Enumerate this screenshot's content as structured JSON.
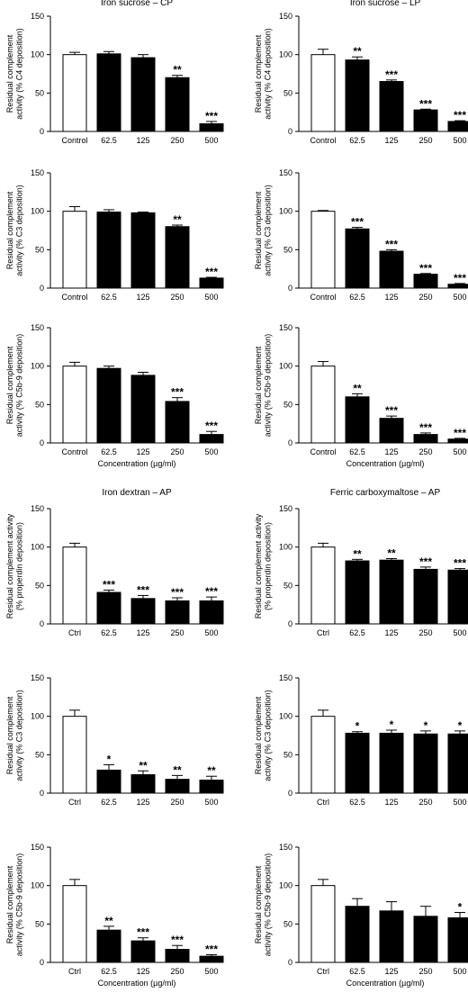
{
  "figure": {
    "section_titles": [
      "Iron sucrose – CP",
      "Iron sucrose – LP",
      "Iron dextran – AP",
      "Ferric carboxymaltose – AP"
    ]
  },
  "chart_data": [
    {
      "type": "bar",
      "title": "Iron sucrose – CP",
      "ylabel": [
        "Residual complement",
        "activity (% C4 deposition)"
      ],
      "xlabel": "",
      "categories": [
        "Control",
        "62.5",
        "125",
        "250",
        "500"
      ],
      "values": [
        100,
        101,
        96,
        70,
        10
      ],
      "errors": [
        3,
        3,
        4,
        3,
        3
      ],
      "significance": [
        "",
        "",
        "",
        "**",
        "***"
      ],
      "ylim": [
        0,
        150
      ],
      "yticks": [
        0,
        50,
        100,
        150
      ],
      "fills": [
        "#ffffff",
        "#000000",
        "#000000",
        "#000000",
        "#000000"
      ]
    },
    {
      "type": "bar",
      "title": "Iron sucrose – LP",
      "ylabel": [
        "Residual complement",
        "activity (% C4 deposition)"
      ],
      "xlabel": "",
      "categories": [
        "Control",
        "62.5",
        "125",
        "250",
        "500"
      ],
      "values": [
        100,
        93,
        65,
        28,
        13
      ],
      "errors": [
        7,
        4,
        2,
        1,
        1
      ],
      "significance": [
        "",
        "**",
        "***",
        "***",
        "***"
      ],
      "ylim": [
        0,
        150
      ],
      "yticks": [
        0,
        50,
        100,
        150
      ],
      "fills": [
        "#ffffff",
        "#000000",
        "#000000",
        "#000000",
        "#000000"
      ]
    },
    {
      "type": "bar",
      "title": "",
      "ylabel": [
        "Residual complement",
        "activity (% C3 deposition)"
      ],
      "xlabel": "",
      "categories": [
        "Control",
        "62.5",
        "125",
        "250",
        "500"
      ],
      "values": [
        100,
        99,
        98,
        80,
        13
      ],
      "errors": [
        6,
        3,
        1,
        2,
        1
      ],
      "significance": [
        "",
        "",
        "",
        "**",
        "***"
      ],
      "ylim": [
        0,
        150
      ],
      "yticks": [
        0,
        50,
        100,
        150
      ],
      "fills": [
        "#ffffff",
        "#000000",
        "#000000",
        "#000000",
        "#000000"
      ]
    },
    {
      "type": "bar",
      "title": "",
      "ylabel": [
        "Residual complement",
        "activity (% C3 deposition)"
      ],
      "xlabel": "",
      "categories": [
        "Control",
        "62.5",
        "125",
        "250",
        "500"
      ],
      "values": [
        100,
        77,
        48,
        18,
        5
      ],
      "errors": [
        1,
        2,
        2,
        1,
        1
      ],
      "significance": [
        "",
        "***",
        "***",
        "***",
        "***"
      ],
      "ylim": [
        0,
        150
      ],
      "yticks": [
        0,
        50,
        100,
        150
      ],
      "fills": [
        "#ffffff",
        "#000000",
        "#000000",
        "#000000",
        "#000000"
      ]
    },
    {
      "type": "bar",
      "title": "",
      "ylabel": [
        "Residual complement",
        "activity (% C5b-9 deposition)"
      ],
      "xlabel": "Concentration (µg/ml)",
      "categories": [
        "Control",
        "62.5",
        "125",
        "250",
        "500"
      ],
      "values": [
        100,
        97,
        88,
        54,
        11
      ],
      "errors": [
        5,
        3,
        4,
        5,
        4
      ],
      "significance": [
        "",
        "",
        "",
        "***",
        "***"
      ],
      "ylim": [
        0,
        150
      ],
      "yticks": [
        0,
        50,
        100,
        150
      ],
      "fills": [
        "#ffffff",
        "#000000",
        "#000000",
        "#000000",
        "#000000"
      ]
    },
    {
      "type": "bar",
      "title": "",
      "ylabel": [
        "Residual complement",
        "activity (% C5b-9 deposition)"
      ],
      "xlabel": "Concentration (µg/ml)",
      "categories": [
        "Control",
        "62.5",
        "125",
        "250",
        "500"
      ],
      "values": [
        100,
        60,
        32,
        11,
        5
      ],
      "errors": [
        6,
        4,
        3,
        2,
        1
      ],
      "significance": [
        "",
        "**",
        "***",
        "***",
        "***"
      ],
      "ylim": [
        0,
        150
      ],
      "yticks": [
        0,
        50,
        100,
        150
      ],
      "fills": [
        "#ffffff",
        "#000000",
        "#000000",
        "#000000",
        "#000000"
      ]
    },
    {
      "type": "bar",
      "title": "Iron dextran – AP",
      "ylabel": [
        "Residual complement activity",
        "(% properdin deposition)"
      ],
      "xlabel": "",
      "categories": [
        "Ctrl",
        "62.5",
        "125",
        "250",
        "500"
      ],
      "values": [
        100,
        41,
        33,
        30,
        30
      ],
      "errors": [
        5,
        3,
        4,
        4,
        5
      ],
      "significance": [
        "",
        "***",
        "***",
        "***",
        "***"
      ],
      "ylim": [
        0,
        150
      ],
      "yticks": [
        0,
        50,
        100,
        150
      ],
      "fills": [
        "#ffffff",
        "#000000",
        "#000000",
        "#000000",
        "#000000"
      ]
    },
    {
      "type": "bar",
      "title": "Ferric carboxymaltose – AP",
      "ylabel": [
        "Residual complement activity",
        "(% properdin deposition)"
      ],
      "xlabel": "",
      "categories": [
        "Ctrl",
        "62.5",
        "125",
        "250",
        "500"
      ],
      "values": [
        100,
        82,
        83,
        71,
        70
      ],
      "errors": [
        5,
        2,
        2,
        3,
        2
      ],
      "significance": [
        "",
        "**",
        "**",
        "***",
        "***"
      ],
      "ylim": [
        0,
        150
      ],
      "yticks": [
        0,
        50,
        100,
        150
      ],
      "fills": [
        "#ffffff",
        "#000000",
        "#000000",
        "#000000",
        "#000000"
      ]
    },
    {
      "type": "bar",
      "title": "",
      "ylabel": [
        "Residual complement",
        "activity (% C3 deposition)"
      ],
      "xlabel": "",
      "categories": [
        "Ctrl",
        "62.5",
        "125",
        "250",
        "500"
      ],
      "values": [
        100,
        30,
        24,
        18,
        17
      ],
      "errors": [
        8,
        7,
        5,
        5,
        5
      ],
      "significance": [
        "",
        "*",
        "**",
        "**",
        "**"
      ],
      "ylim": [
        0,
        150
      ],
      "yticks": [
        0,
        50,
        100,
        150
      ],
      "fills": [
        "#ffffff",
        "#000000",
        "#000000",
        "#000000",
        "#000000"
      ]
    },
    {
      "type": "bar",
      "title": "",
      "ylabel": [
        "Residual complement",
        "activity (% C3 deposition)"
      ],
      "xlabel": "",
      "categories": [
        "Ctrl",
        "62.5",
        "125",
        "250",
        "500"
      ],
      "values": [
        100,
        78,
        78,
        77,
        77
      ],
      "errors": [
        8,
        2,
        4,
        4,
        4
      ],
      "significance": [
        "",
        "*",
        "*",
        "*",
        "*"
      ],
      "ylim": [
        0,
        150
      ],
      "yticks": [
        0,
        50,
        100,
        150
      ],
      "fills": [
        "#ffffff",
        "#000000",
        "#000000",
        "#000000",
        "#000000"
      ]
    },
    {
      "type": "bar",
      "title": "",
      "ylabel": [
        "Residual complement",
        "activity (% C5b-9 deposition)"
      ],
      "xlabel": "Concentration (µg/ml)",
      "categories": [
        "Ctrl",
        "62.5",
        "125",
        "250",
        "500"
      ],
      "values": [
        100,
        42,
        28,
        17,
        8
      ],
      "errors": [
        8,
        5,
        4,
        5,
        2
      ],
      "significance": [
        "",
        "**",
        "***",
        "***",
        "***"
      ],
      "ylim": [
        0,
        150
      ],
      "yticks": [
        0,
        50,
        100,
        150
      ],
      "fills": [
        "#ffffff",
        "#000000",
        "#000000",
        "#000000",
        "#000000"
      ]
    },
    {
      "type": "bar",
      "title": "",
      "ylabel": [
        "Residual complement",
        "activity (% C5b-9 deposition)"
      ],
      "xlabel": "Concentration (µg/ml)",
      "categories": [
        "Ctrl",
        "62.5",
        "125",
        "250",
        "500"
      ],
      "values": [
        100,
        73,
        67,
        60,
        58
      ],
      "errors": [
        8,
        10,
        12,
        13,
        7
      ],
      "significance": [
        "",
        "",
        "",
        "",
        "*"
      ],
      "ylim": [
        0,
        150
      ],
      "yticks": [
        0,
        50,
        100,
        150
      ],
      "fills": [
        "#ffffff",
        "#000000",
        "#000000",
        "#000000",
        "#000000"
      ]
    }
  ]
}
